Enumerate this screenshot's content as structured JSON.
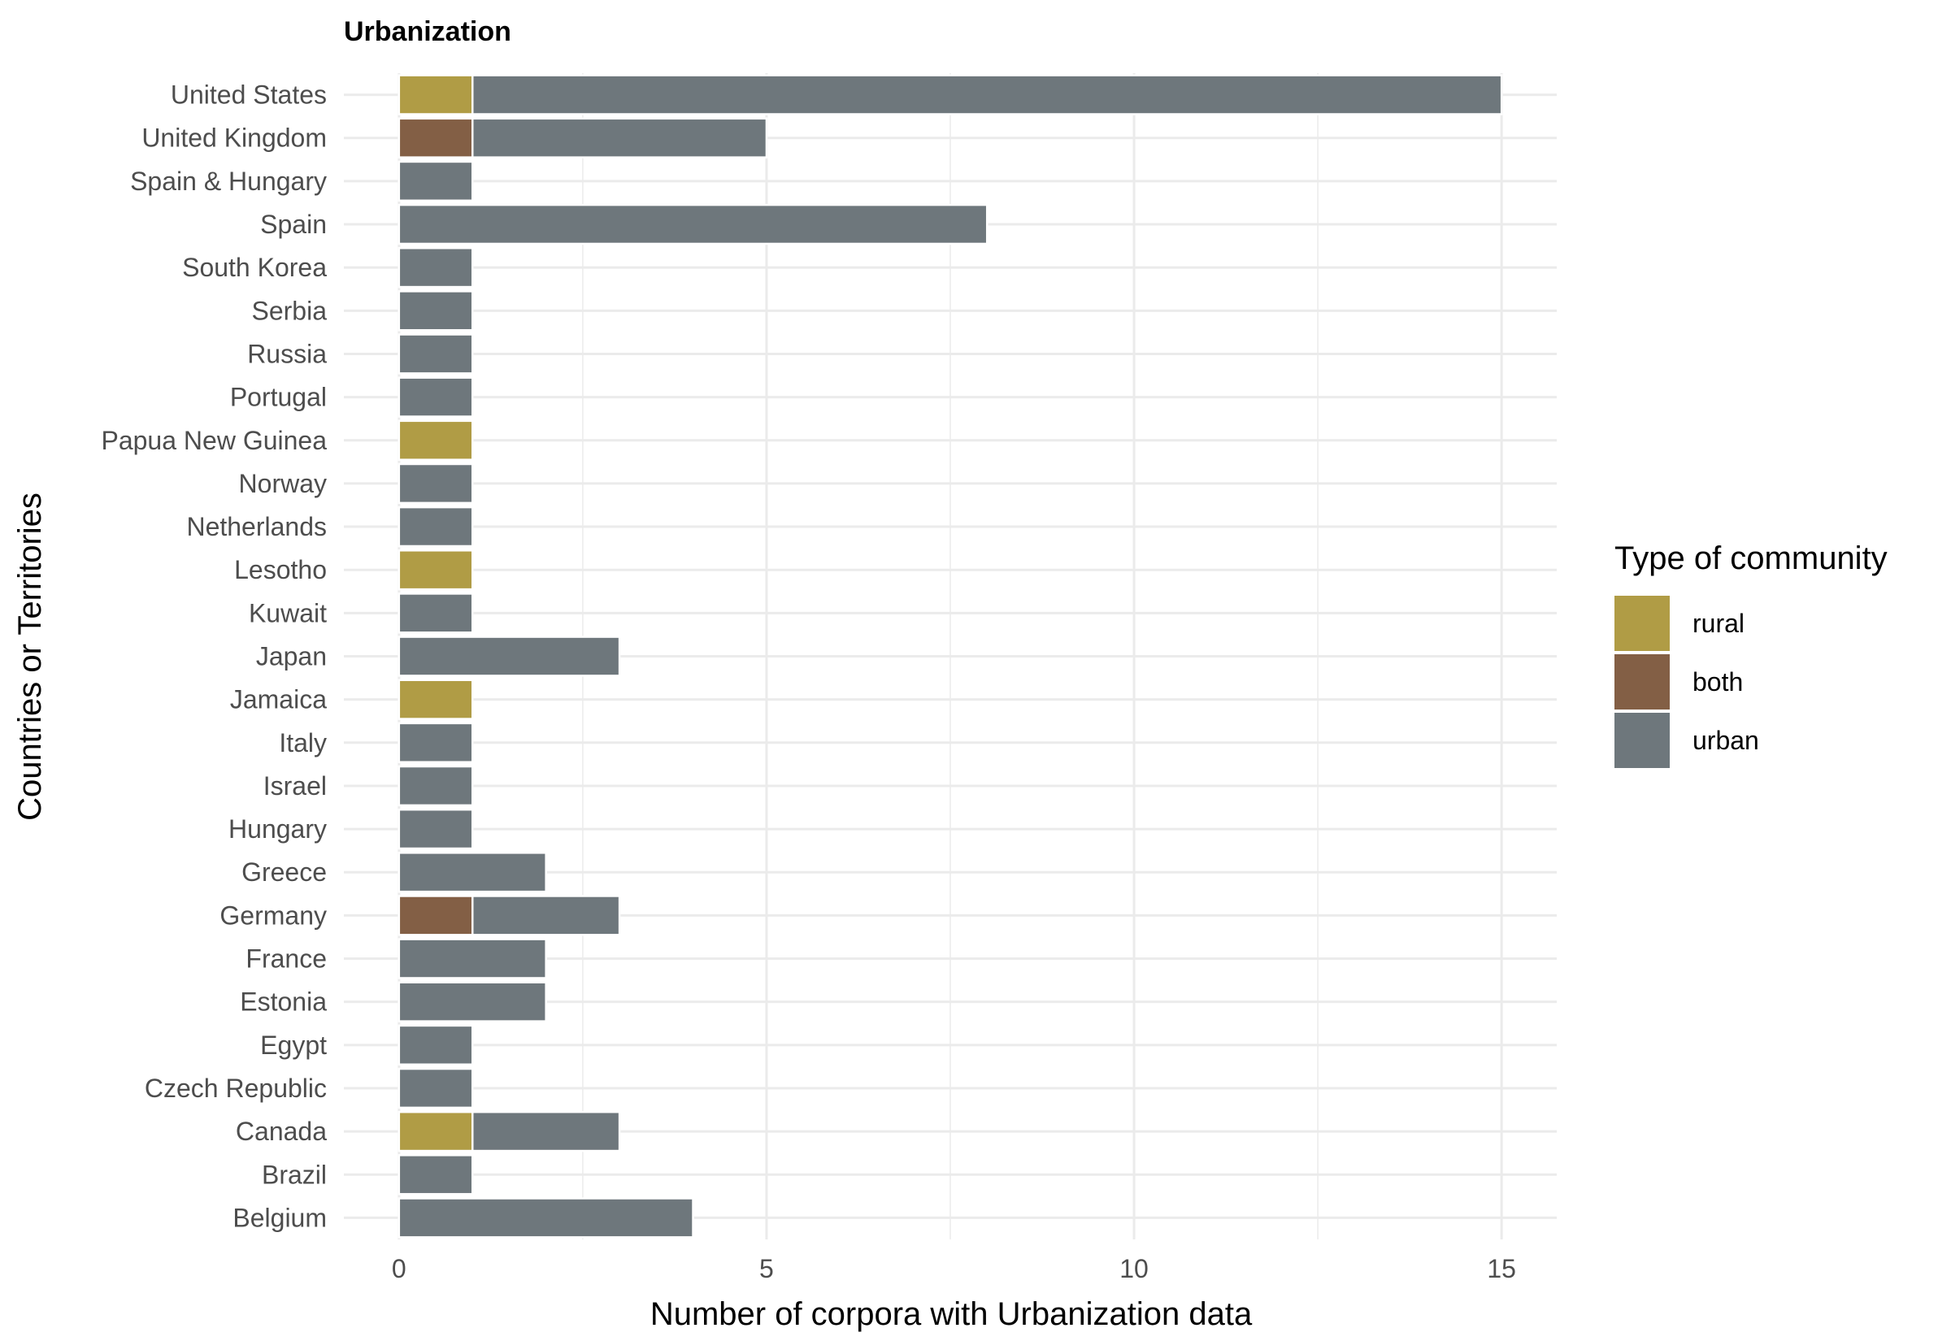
{
  "chart_data": {
    "type": "bar",
    "orientation": "horizontal",
    "stacked": true,
    "title": "Urbanization",
    "xlabel": "Number of corpora with Urbanization data",
    "ylabel": "Countries or Territories",
    "xlim": [
      -0.75,
      15.75
    ],
    "xticks": [
      0,
      5,
      10,
      15
    ],
    "grid": true,
    "legend_position": "right",
    "legend_title": "Type of community",
    "categories": [
      "United States",
      "United Kingdom",
      "Spain & Hungary",
      "Spain",
      "South Korea",
      "Serbia",
      "Russia",
      "Portugal",
      "Papua New Guinea",
      "Norway",
      "Netherlands",
      "Lesotho",
      "Kuwait",
      "Japan",
      "Jamaica",
      "Italy",
      "Israel",
      "Hungary",
      "Greece",
      "Germany",
      "France",
      "Estonia",
      "Egypt",
      "Czech Republic",
      "Canada",
      "Brazil",
      "Belgium"
    ],
    "series": [
      {
        "name": "rural",
        "color": "#B09C45",
        "values": [
          1,
          0,
          0,
          0,
          0,
          0,
          0,
          0,
          1,
          0,
          0,
          1,
          0,
          0,
          1,
          0,
          0,
          0,
          0,
          0,
          0,
          0,
          0,
          0,
          1,
          0,
          0
        ]
      },
      {
        "name": "both",
        "color": "#835F45",
        "values": [
          0,
          1,
          0,
          0,
          0,
          0,
          0,
          0,
          0,
          0,
          0,
          0,
          0,
          0,
          0,
          0,
          0,
          0,
          0,
          1,
          0,
          0,
          0,
          0,
          0,
          0,
          0
        ]
      },
      {
        "name": "urban",
        "color": "#6E777C",
        "values": [
          14,
          4,
          1,
          8,
          1,
          1,
          1,
          1,
          0,
          1,
          1,
          0,
          1,
          3,
          0,
          1,
          1,
          1,
          2,
          2,
          2,
          2,
          1,
          1,
          2,
          1,
          4
        ]
      }
    ]
  }
}
